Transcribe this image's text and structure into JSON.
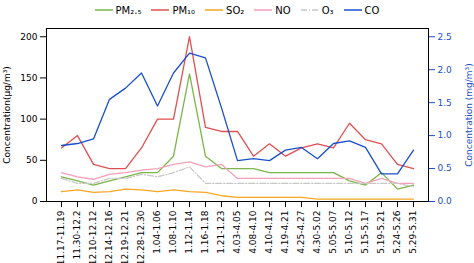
{
  "chart_data": {
    "type": "line",
    "categories": [
      "11.17-11.19",
      "11.30-12.2",
      "12.10-12.12",
      "12.14-12.16",
      "12.19-12.21",
      "12.28-12.30",
      "1.04-1.06",
      "1.08-1.10",
      "1.12-1.14",
      "1.16-1.18",
      "1.21-1.23",
      "4.03-4.05",
      "4.08-4.10",
      "4.10-4.12",
      "4.19-4.21",
      "4.25-4.27",
      "4.30-5.02",
      "5.05-5.07",
      "5.10-5.12",
      "5.15-5.17",
      "5.19-5.21",
      "5.24-5.26",
      "5.29-5.31"
    ],
    "series": [
      {
        "name": "PM₂.₅",
        "color": "#7ab648",
        "line_style": "solid",
        "values": [
          30,
          25,
          20,
          25,
          30,
          35,
          35,
          55,
          155,
          55,
          40,
          40,
          40,
          35,
          35,
          35,
          35,
          35,
          25,
          20,
          35,
          15,
          20
        ]
      },
      {
        "name": "PM₁₀",
        "color": "#e05050",
        "line_style": "solid",
        "values": [
          65,
          80,
          45,
          40,
          40,
          65,
          100,
          100,
          200,
          90,
          85,
          85,
          55,
          70,
          55,
          65,
          70,
          65,
          95,
          75,
          70,
          45,
          40
        ]
      },
      {
        "name": "SO₂",
        "color": "#f5a623",
        "line_style": "solid",
        "values": [
          12,
          14,
          11,
          12,
          15,
          14,
          12,
          14,
          12,
          11,
          7,
          5,
          5,
          5,
          5,
          5,
          3,
          3,
          3,
          3,
          3,
          3,
          3
        ]
      },
      {
        "name": "NO",
        "color": "#f4a0b8",
        "line_style": "solid",
        "values": [
          35,
          30,
          27,
          33,
          35,
          38,
          40,
          45,
          48,
          42,
          45,
          28,
          28,
          28,
          28,
          28,
          28,
          28,
          28,
          22,
          28,
          22,
          22
        ]
      },
      {
        "name": "O₃",
        "color": "#c8c8c8",
        "line_style": "dashdot",
        "values": [
          28,
          22,
          22,
          28,
          28,
          33,
          30,
          35,
          42,
          22,
          22,
          22,
          22,
          22,
          22,
          22,
          22,
          22,
          22,
          22,
          22,
          22,
          18
        ]
      },
      {
        "name": "CO",
        "color": "#1a4fcc",
        "line_style": "solid",
        "axis": "y2",
        "values": [
          0.85,
          0.88,
          0.95,
          1.55,
          1.72,
          1.95,
          1.45,
          1.95,
          2.25,
          2.18,
          1.42,
          0.62,
          0.65,
          0.62,
          0.78,
          0.82,
          0.65,
          0.88,
          0.92,
          0.82,
          0.42,
          0.42,
          0.78
        ]
      }
    ],
    "ylabel": "Concentration(μg/m³)",
    "y2label": "Concentration (mg/m³)",
    "ylim": [
      0,
      210
    ],
    "yticks": [
      0,
      50,
      100,
      150,
      200
    ],
    "y2lim": [
      0.0,
      2.625
    ],
    "y2ticks": [
      {
        "value": 0,
        "label": "0.0"
      },
      0.5,
      {
        "value": 1,
        "label": "1.0"
      },
      1.5,
      {
        "value": 2,
        "label": "2.0"
      },
      2.5
    ],
    "legend": "top",
    "grid": false
  }
}
